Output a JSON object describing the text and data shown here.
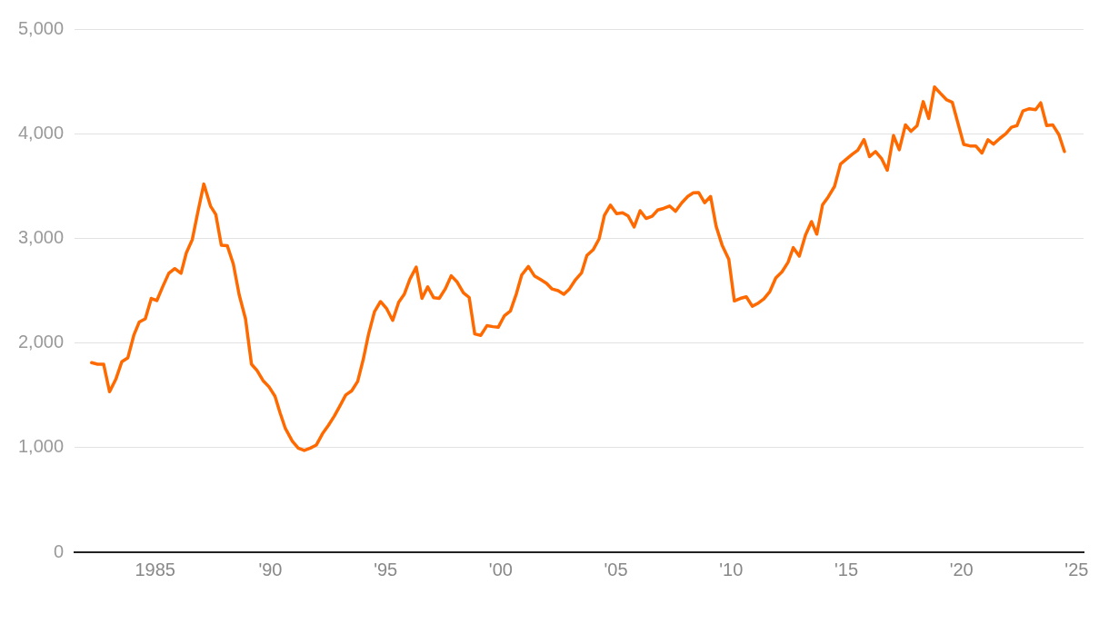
{
  "chart_data": {
    "type": "line",
    "xlim": [
      1981.5,
      2025.3
    ],
    "ylim": [
      0,
      5000
    ],
    "xticks": [
      {
        "value": 1985,
        "label": "1985"
      },
      {
        "value": 1990,
        "label": "'90"
      },
      {
        "value": 1995,
        "label": "'95"
      },
      {
        "value": 2000,
        "label": "'00"
      },
      {
        "value": 2005,
        "label": "'05"
      },
      {
        "value": 2010,
        "label": "'10"
      },
      {
        "value": 2015,
        "label": "'15"
      },
      {
        "value": 2020,
        "label": "'20"
      },
      {
        "value": 2025,
        "label": "'25"
      }
    ],
    "yticks": [
      {
        "value": 0,
        "label": "0"
      },
      {
        "value": 1000,
        "label": "1,000"
      },
      {
        "value": 2000,
        "label": "2,000"
      },
      {
        "value": 3000,
        "label": "3,000"
      },
      {
        "value": 4000,
        "label": "4,000"
      },
      {
        "value": 5000,
        "label": "5,000"
      }
    ],
    "grid": "y",
    "legend": false,
    "marker": "none",
    "line_style": "solid",
    "series": [
      {
        "color": "#ff6a00",
        "x": [
          1982.24,
          1982.5,
          1982.76,
          1983.02,
          1983.29,
          1983.55,
          1983.81,
          1984.07,
          1984.31,
          1984.57,
          1984.83,
          1985.07,
          1985.33,
          1985.59,
          1985.85,
          1986.12,
          1986.35,
          1986.61,
          1986.85,
          1987.11,
          1987.4,
          1987.63,
          1987.87,
          1988.13,
          1988.39,
          1988.65,
          1988.92,
          1989.18,
          1989.42,
          1989.68,
          1989.94,
          1990.2,
          1990.42,
          1990.65,
          1990.95,
          1991.21,
          1991.47,
          1991.73,
          1991.99,
          1992.26,
          1992.52,
          1992.78,
          1993.04,
          1993.27,
          1993.53,
          1993.79,
          1994.03,
          1994.26,
          1994.52,
          1994.78,
          1995.05,
          1995.31,
          1995.57,
          1995.81,
          1996.06,
          1996.33,
          1996.58,
          1996.83,
          1997.09,
          1997.33,
          1997.59,
          1997.85,
          1998.11,
          1998.38,
          1998.63,
          1998.87,
          1999.13,
          1999.4,
          1999.66,
          1999.89,
          2000.16,
          2000.42,
          2000.68,
          2000.91,
          2001.2,
          2001.46,
          2001.73,
          2001.99,
          2002.23,
          2002.49,
          2002.74,
          2002.98,
          2003.25,
          2003.51,
          2003.74,
          2004.01,
          2004.27,
          2004.5,
          2004.76,
          2005.03,
          2005.29,
          2005.53,
          2005.79,
          2006.05,
          2006.31,
          2006.57,
          2006.81,
          2007.07,
          2007.33,
          2007.59,
          2007.86,
          2008.12,
          2008.36,
          2008.59,
          2008.85,
          2009.11,
          2009.35,
          2009.61,
          2009.9,
          2010.14,
          2010.4,
          2010.66,
          2010.92,
          2011.18,
          2011.42,
          2011.68,
          2011.94,
          2012.21,
          2012.47,
          2012.7,
          2012.96,
          2013.23,
          2013.49,
          2013.72,
          2013.97,
          2014.22,
          2014.49,
          2014.75,
          2015.02,
          2015.27,
          2015.5,
          2015.77,
          2016.01,
          2016.27,
          2016.54,
          2016.78,
          2017.05,
          2017.3,
          2017.57,
          2017.81,
          2018.07,
          2018.34,
          2018.58,
          2018.83,
          2019.09,
          2019.36,
          2019.6,
          2019.83,
          2020.1,
          2020.37,
          2020.62,
          2020.89,
          2021.15,
          2021.39,
          2021.66,
          2021.93,
          2022.17,
          2022.41,
          2022.67,
          2022.95,
          2023.22,
          2023.44,
          2023.7,
          2023.96,
          2024.23,
          2024.47
        ],
        "values": [
          1812,
          1797,
          1797,
          1534,
          1653,
          1821,
          1857,
          2073,
          2201,
          2231,
          2426,
          2405,
          2540,
          2666,
          2711,
          2666,
          2860,
          2989,
          3250,
          3519,
          3309,
          3228,
          2935,
          2929,
          2756,
          2456,
          2231,
          1797,
          1737,
          1641,
          1581,
          1491,
          1332,
          1183,
          1063,
          995,
          973,
          995,
          1024,
          1132,
          1213,
          1303,
          1408,
          1503,
          1543,
          1633,
          1842,
          2082,
          2300,
          2396,
          2327,
          2216,
          2390,
          2465,
          2612,
          2725,
          2426,
          2536,
          2432,
          2426,
          2516,
          2642,
          2582,
          2480,
          2435,
          2087,
          2073,
          2165,
          2156,
          2150,
          2261,
          2306,
          2471,
          2650,
          2731,
          2642,
          2606,
          2570,
          2516,
          2500,
          2465,
          2516,
          2606,
          2671,
          2836,
          2890,
          2995,
          3219,
          3318,
          3235,
          3244,
          3214,
          3109,
          3264,
          3190,
          3210,
          3270,
          3286,
          3309,
          3259,
          3340,
          3400,
          3435,
          3438,
          3340,
          3400,
          3115,
          2935,
          2800,
          2402,
          2426,
          2441,
          2351,
          2381,
          2420,
          2491,
          2621,
          2680,
          2770,
          2911,
          2830,
          3031,
          3160,
          3040,
          3320,
          3397,
          3496,
          3710,
          3759,
          3805,
          3843,
          3944,
          3781,
          3830,
          3759,
          3650,
          3982,
          3846,
          4085,
          4023,
          4075,
          4307,
          4145,
          4447,
          4385,
          4323,
          4301,
          4115,
          3898,
          3883,
          3883,
          3815,
          3942,
          3901,
          3954,
          4000,
          4062,
          4078,
          4218,
          4239,
          4229,
          4295,
          4078,
          4085,
          3991,
          3830
        ]
      }
    ]
  }
}
